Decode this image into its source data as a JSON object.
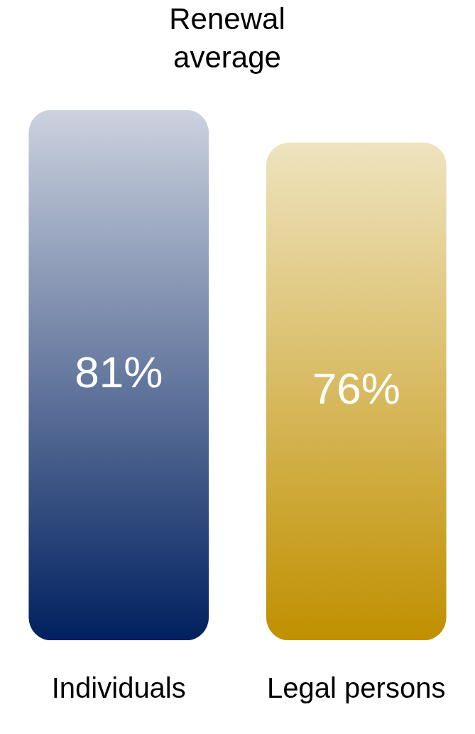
{
  "chart_data": {
    "type": "bar",
    "title": "Renewal average",
    "categories": [
      "Individuals",
      "Legal persons"
    ],
    "values": [
      81,
      76
    ],
    "colors": [
      "#00205f",
      "#c09000"
    ],
    "value_labels": [
      "81%",
      "76%"
    ]
  }
}
